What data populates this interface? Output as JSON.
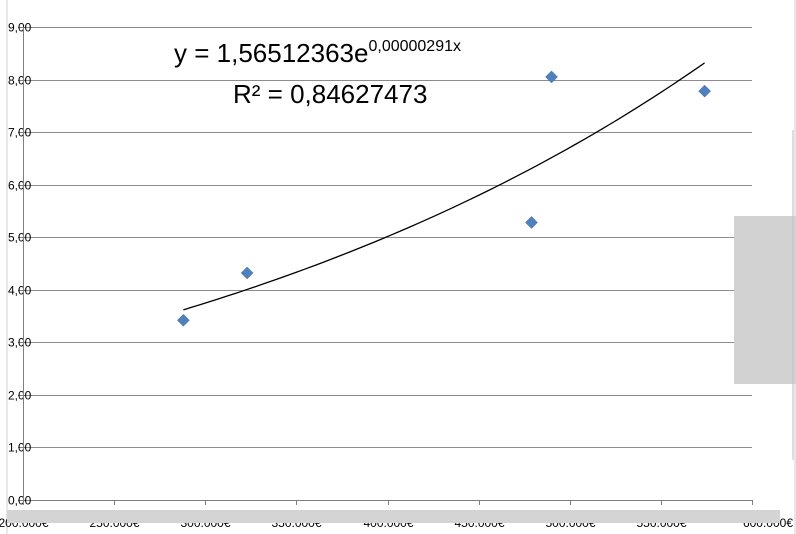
{
  "chart_data": {
    "type": "scatter",
    "title": "",
    "xlabel": "",
    "ylabel": "",
    "xlim": [
      200000,
      600000
    ],
    "ylim": [
      0,
      9
    ],
    "x_ticks": [
      200000,
      250000,
      300000,
      350000,
      400000,
      450000,
      500000,
      550000,
      600000
    ],
    "x_tick_labels": [
      "200.000€",
      "250.000€",
      "300.000€",
      "350.000€",
      "400.000€",
      "450.000€",
      "500.000€",
      "550.000€",
      "600.000€"
    ],
    "y_ticks": [
      0,
      1,
      2,
      3,
      4,
      5,
      6,
      7,
      8,
      9
    ],
    "y_tick_labels": [
      "0,00",
      "1,00",
      "2,00",
      "3,00",
      "4,00",
      "5,00",
      "6,00",
      "7,00",
      "8,00",
      "9,00"
    ],
    "grid": {
      "horizontal": true,
      "vertical": false
    },
    "series": [
      {
        "marker": "diamond",
        "color": "#4F81BD",
        "points": [
          {
            "x": 288000,
            "y": 3.42
          },
          {
            "x": 323000,
            "y": 4.32
          },
          {
            "x": 479000,
            "y": 5.28
          },
          {
            "x": 490000,
            "y": 8.05
          },
          {
            "x": 574000,
            "y": 7.78
          }
        ]
      }
    ],
    "trendline": {
      "type": "exponential",
      "a": 1.56512363,
      "b": 2.91e-06,
      "x_range": [
        288000,
        574000
      ],
      "color": "#000000",
      "equation_prefix": "y = 1,56512363e",
      "equation_exponent": "0,00000291x",
      "r_squared_label": "R² = 0,84627473"
    }
  }
}
